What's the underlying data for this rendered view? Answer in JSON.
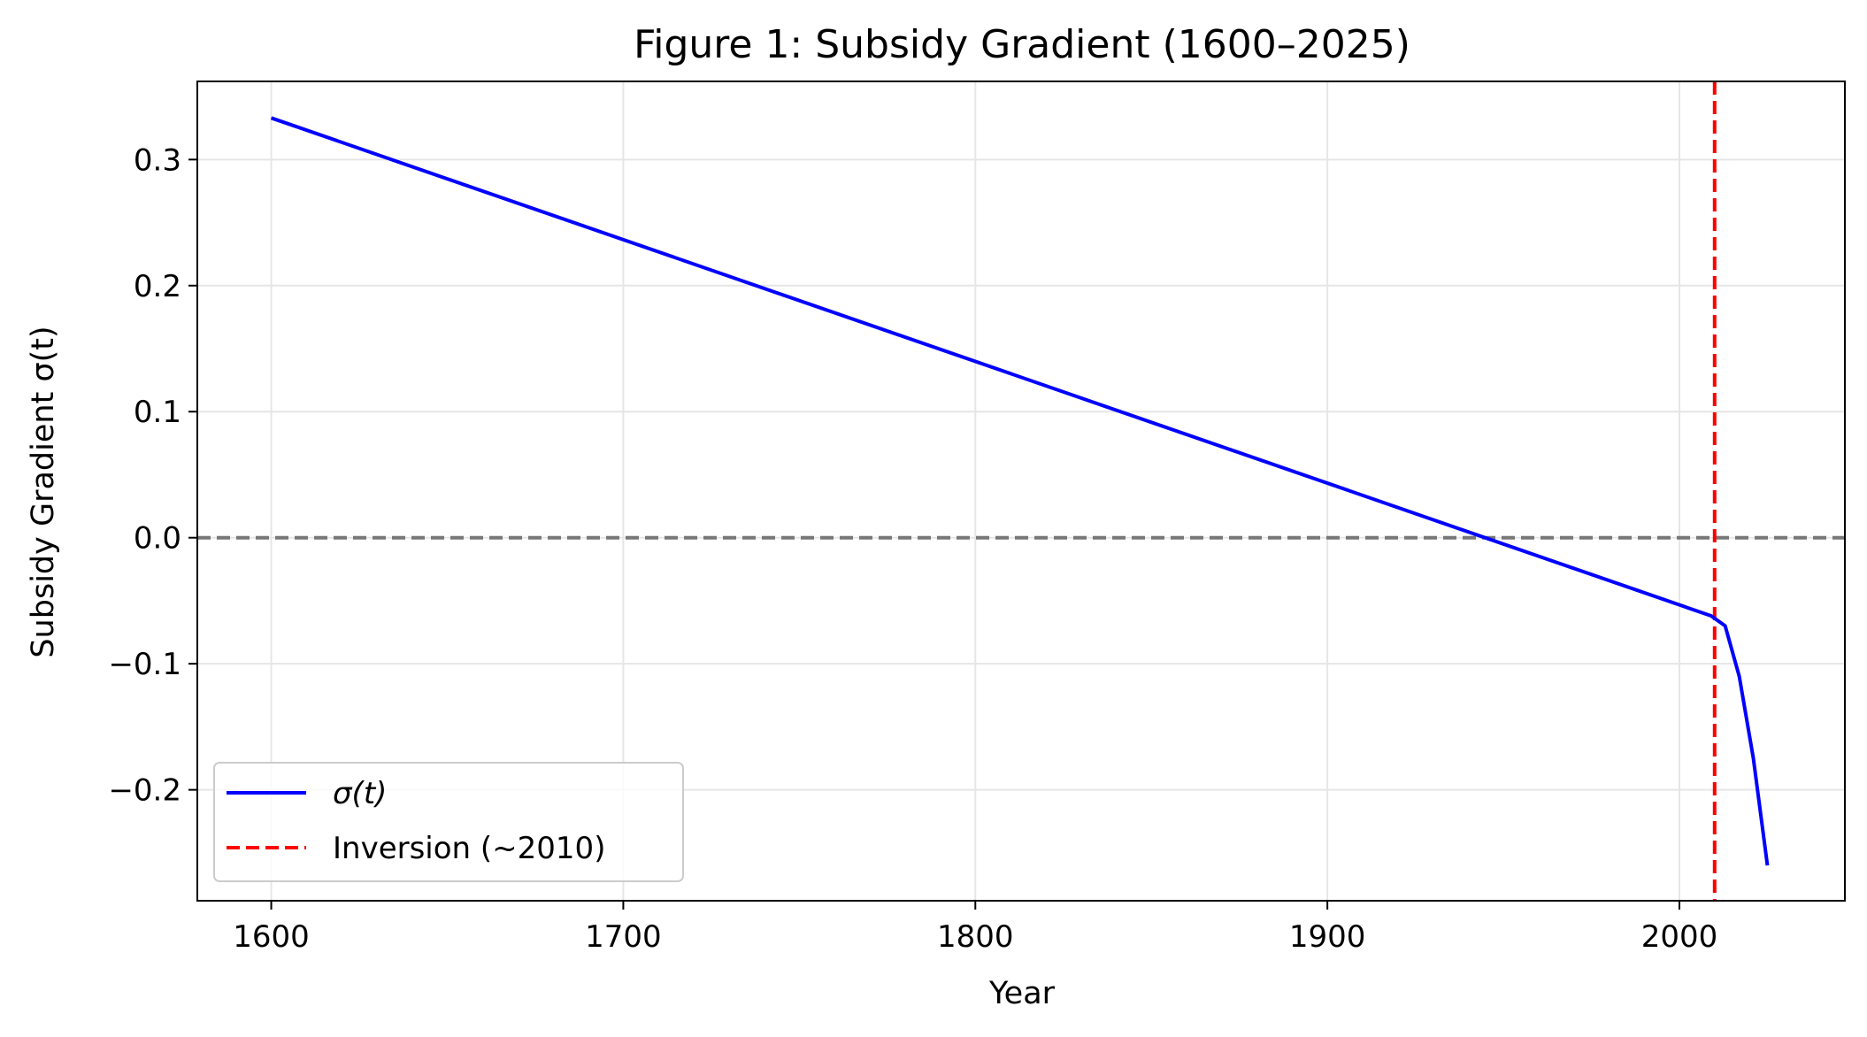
{
  "chart_data": {
    "type": "line",
    "title": "Figure 1: Subsidy Gradient (1600–2025)",
    "xlabel": "Year",
    "ylabel": "Subsidy Gradient σ(t)",
    "xlim": [
      1579,
      2047
    ],
    "ylim": [
      -0.288,
      0.362
    ],
    "xticks": [
      1600,
      1700,
      1800,
      1900,
      2000
    ],
    "yticks": [
      -0.2,
      -0.1,
      0.0,
      0.1,
      0.2,
      0.3
    ],
    "ytick_labels": [
      "−0.2",
      "−0.1",
      "0.0",
      "0.1",
      "0.2",
      "0.3"
    ],
    "grid": true,
    "legend_position": "lower-left",
    "series": [
      {
        "name": "σ(t)",
        "color": "#0000ff",
        "style": "solid",
        "x": [
          1600,
          2009,
          2013,
          2017,
          2021,
          2025
        ],
        "y": [
          0.333,
          -0.062,
          -0.07,
          -0.11,
          -0.175,
          -0.26
        ]
      }
    ],
    "reference_lines": [
      {
        "orientation": "horizontal",
        "value": 0.0,
        "color": "#777777",
        "style": "dashed"
      },
      {
        "orientation": "vertical",
        "value": 2010,
        "color": "#ff0000",
        "style": "dashed",
        "name": "Inversion (~2010)"
      }
    ],
    "legend": [
      {
        "label": "σ(t)",
        "color": "#0000ff",
        "style": "solid"
      },
      {
        "label": "Inversion (~2010)",
        "color": "#ff0000",
        "style": "dashed"
      }
    ]
  }
}
